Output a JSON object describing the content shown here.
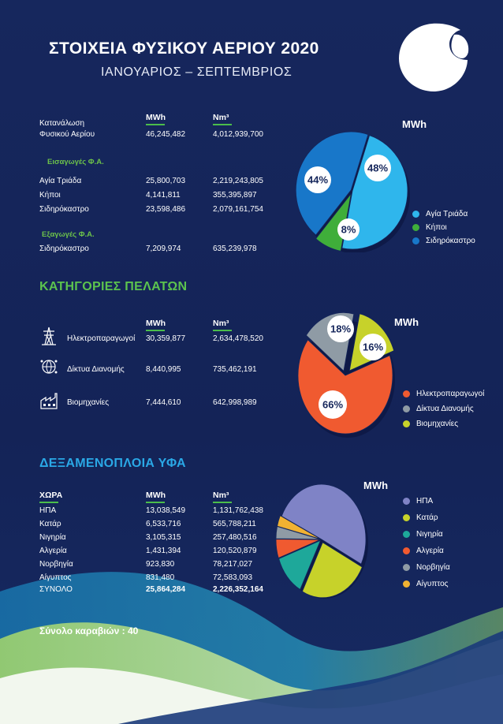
{
  "header": {
    "title": "ΣΤΟΙΧΕΙΑ ΦΥΣΙΚΟΥ ΑΕΡΙΟΥ 2020",
    "subtitle": "ΙΑΝΟΥΑΡΙΟΣ – ΣΕΠΤΕΜΒΡΙΟΣ"
  },
  "units": {
    "mwh": "MWh",
    "nm3": "Nm³"
  },
  "consumption": {
    "label_line1": "Κατανάλωση",
    "label_line2": "Φυσικού Αερίου",
    "mwh": "46,245,482",
    "nm3": "4,012,939,700",
    "imports_heading": "Εισαγωγές Φ.Α.",
    "imports": [
      {
        "name": "Αγία Τριάδα",
        "mwh": "25,800,703",
        "nm3": "2,219,243,805"
      },
      {
        "name": "Κήποι",
        "mwh": "4,141,811",
        "nm3": "355,395,897"
      },
      {
        "name": "Σιδηρόκαστρο",
        "mwh": "23,598,486",
        "nm3": "2,079,161,754"
      }
    ],
    "exports_heading": "Εξαγωγές Φ.Α.",
    "exports": [
      {
        "name": "Σιδηρόκαστρο",
        "mwh": "7,209,974",
        "nm3": "635,239,978"
      }
    ]
  },
  "customers": {
    "section_title": "ΚΑΤΗΓΟΡΙΕΣ ΠΕΛΑΤΩΝ",
    "rows": [
      {
        "name": "Ηλεκτροπαραγωγοί",
        "icon": "power-pylon-icon",
        "mwh": "30,359,877",
        "nm3": "2,634,478,520"
      },
      {
        "name": "Δίκτυα Διανομής",
        "icon": "network-globe-icon",
        "mwh": "8,440,995",
        "nm3": "735,462,191"
      },
      {
        "name": "Βιομηχανίες",
        "icon": "factory-icon",
        "mwh": "7,444,610",
        "nm3": "642,998,989"
      }
    ]
  },
  "lng": {
    "section_title": "ΔΕΞΑΜΕΝΟΠΛΟΙΑ ΥΦΑ",
    "country_header": "ΧΩΡΑ",
    "rows": [
      {
        "name": "ΗΠΑ",
        "mwh": "13,038,549",
        "nm3": "1,131,762,438"
      },
      {
        "name": "Κατάρ",
        "mwh": "6,533,716",
        "nm3": "565,788,211"
      },
      {
        "name": "Νιγηρία",
        "mwh": "3,105,315",
        "nm3": "257,480,516"
      },
      {
        "name": "Αλγερία",
        "mwh": "1,431,394",
        "nm3": "120,520,879"
      },
      {
        "name": "Νορβηγία",
        "mwh": "923,830",
        "nm3": "78,217,027"
      },
      {
        "name": "Αίγυπτος",
        "mwh": "831,480",
        "nm3": "72,583,093"
      }
    ],
    "total": {
      "name": "ΣΥΝΟΛΟ",
      "mwh": "25,864,284",
      "nm3": "2,226,352,164"
    },
    "ships_total": "Σύνολο καραβιών : 40"
  },
  "colors": {
    "background": "#15265b",
    "green": "#5cc34e",
    "blue_heading": "#2aa8e6"
  },
  "chart_data": [
    {
      "type": "pie",
      "title": "MWh",
      "categories": [
        "Αγία Τριάδα",
        "Κήποι",
        "Σιδηρόκαστρο"
      ],
      "values": [
        48,
        8,
        44
      ],
      "labels": [
        "48%",
        "8%",
        "44%"
      ],
      "colors": [
        "#2fb6ec",
        "#3fae3a",
        "#1877c9"
      ],
      "legend_position": "bottom-right"
    },
    {
      "type": "pie",
      "title": "MWh",
      "categories": [
        "Ηλεκτροπαραγωγοί",
        "Δίκτυα Διανομής",
        "Βιομηχανίες"
      ],
      "values": [
        66,
        18,
        16
      ],
      "labels": [
        "66%",
        "18%",
        "16%"
      ],
      "colors": [
        "#f05a30",
        "#8f9ba5",
        "#c7d22a"
      ],
      "legend_position": "bottom-right"
    },
    {
      "type": "pie",
      "title": "MWh",
      "categories": [
        "ΗΠΑ",
        "Κατάρ",
        "Νιγηρία",
        "Αλγερία",
        "Νορβηγία",
        "Αίγυπτος"
      ],
      "values": [
        13038549,
        6533716,
        3105315,
        1431394,
        923830,
        831480
      ],
      "colors": [
        "#7f83c6",
        "#c7d22a",
        "#1ea89a",
        "#f05a30",
        "#8f9ba5",
        "#f1b232"
      ],
      "legend_position": "right"
    }
  ]
}
